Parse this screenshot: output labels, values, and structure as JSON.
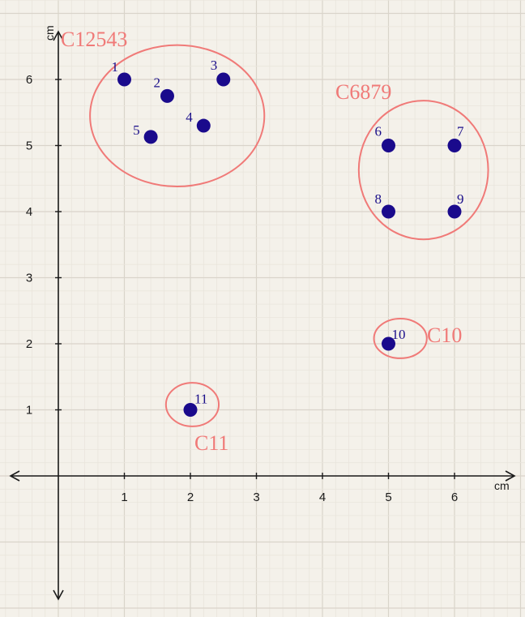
{
  "chart_data": {
    "type": "scatter",
    "x_unit": "cm",
    "y_unit": "cm",
    "xlim": [
      -0.7,
      6.9
    ],
    "ylim": [
      -1.9,
      6.9
    ],
    "x_ticks": [
      "1",
      "2",
      "3",
      "4",
      "5",
      "6"
    ],
    "y_ticks": [
      "1",
      "2",
      "3",
      "4",
      "5",
      "6"
    ],
    "grid": true,
    "points": [
      {
        "label": "1",
        "x": 1.0,
        "y": 6.0
      },
      {
        "label": "2",
        "x": 1.65,
        "y": 5.75
      },
      {
        "label": "3",
        "x": 2.5,
        "y": 6.0
      },
      {
        "label": "4",
        "x": 2.2,
        "y": 5.3
      },
      {
        "label": "5",
        "x": 1.4,
        "y": 5.13
      },
      {
        "label": "6",
        "x": 5.0,
        "y": 5.0
      },
      {
        "label": "7",
        "x": 6.0,
        "y": 5.0
      },
      {
        "label": "8",
        "x": 5.0,
        "y": 4.0
      },
      {
        "label": "9",
        "x": 6.0,
        "y": 4.0
      },
      {
        "label": "10",
        "x": 5.0,
        "y": 2.0
      },
      {
        "label": "11",
        "x": 2.0,
        "y": 1.0
      }
    ],
    "clusters": [
      {
        "label": "C12543",
        "cx": 1.8,
        "cy": 5.45,
        "rx": 1.32,
        "ry": 1.07
      },
      {
        "label": "C6879",
        "cx": 5.53,
        "cy": 4.63,
        "rx": 0.98,
        "ry": 1.05
      },
      {
        "label": "C10",
        "cx": 5.18,
        "cy": 2.08,
        "rx": 0.4,
        "ry": 0.3
      },
      {
        "label": "C11",
        "cx": 2.03,
        "cy": 1.08,
        "rx": 0.4,
        "ry": 0.33
      }
    ],
    "colors": {
      "point": "#1a0a8c",
      "cluster": "#f07a78",
      "axis": "#1a1a1a",
      "grid_major": "#d9d4ca",
      "grid_minor": "#e9e5dc",
      "background": "#f4f1ea"
    }
  }
}
